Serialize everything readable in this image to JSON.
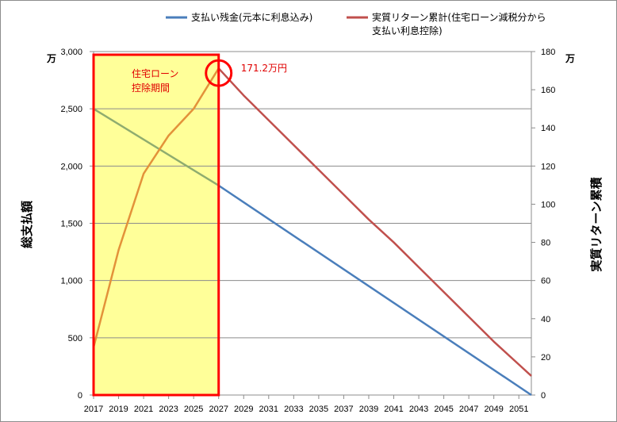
{
  "chart_data": {
    "type": "line",
    "title": "",
    "x_range": [
      2017,
      2052
    ],
    "x_ticks": [
      "2017",
      "2019",
      "2021",
      "2023",
      "2025",
      "2027",
      "2029",
      "2031",
      "2033",
      "2035",
      "2037",
      "2039",
      "2041",
      "2043",
      "2045",
      "2047",
      "2049",
      "2051"
    ],
    "y_left": {
      "label": "総支払額",
      "unit": "万",
      "range": [
        0,
        3000
      ],
      "ticks": [
        "0",
        "500",
        "1,000",
        "1,500",
        "2,000",
        "2,500",
        "3,000"
      ]
    },
    "y_right": {
      "label": "実質リターン累積",
      "unit": "万",
      "range": [
        0,
        180
      ],
      "ticks": [
        "0",
        "20",
        "40",
        "60",
        "80",
        "100",
        "120",
        "140",
        "160",
        "180"
      ]
    },
    "grid": true,
    "legend_position": "top",
    "series": [
      {
        "name": "支払い残金(元本に利息込み)",
        "axis": "left",
        "color": "#4a7ebb",
        "x": [
          2017,
          2027,
          2052
        ],
        "y": [
          2500,
          1830,
          0
        ]
      },
      {
        "name": "実質リターン累計(住宅ローン減税分から支払い利息控除)",
        "legend_lines": [
          "実質リターン累計(住宅ローン減税分から",
          "支払い利息控除)"
        ],
        "axis": "right",
        "color": "#c0504d",
        "x": [
          2017,
          2019,
          2021,
          2023,
          2025,
          2027,
          2029,
          2031,
          2033,
          2035,
          2037,
          2039,
          2041,
          2043,
          2045,
          2047,
          2049,
          2051,
          2052
        ],
        "y": [
          25,
          76,
          116,
          136,
          150,
          171.2,
          157,
          144,
          131,
          118,
          105,
          92,
          80,
          67,
          54,
          41,
          28,
          16,
          10
        ]
      }
    ],
    "highlight_region": {
      "x_from": 2017,
      "x_to": 2027,
      "fill": "#ffff99",
      "border": "#ff0000",
      "label_lines": [
        "住宅ローン",
        "控除期間"
      ],
      "series_color_inside": {
        "支払い残金(元本に利息込み)": "#8fac6f",
        "実質リターン累計(住宅ローン減税分から支払い利息控除)": "#e3923a"
      }
    },
    "annotation": {
      "text": "171.2万円",
      "x": 2027,
      "y": 171.2,
      "axis": "right",
      "color": "#ff0000"
    }
  }
}
